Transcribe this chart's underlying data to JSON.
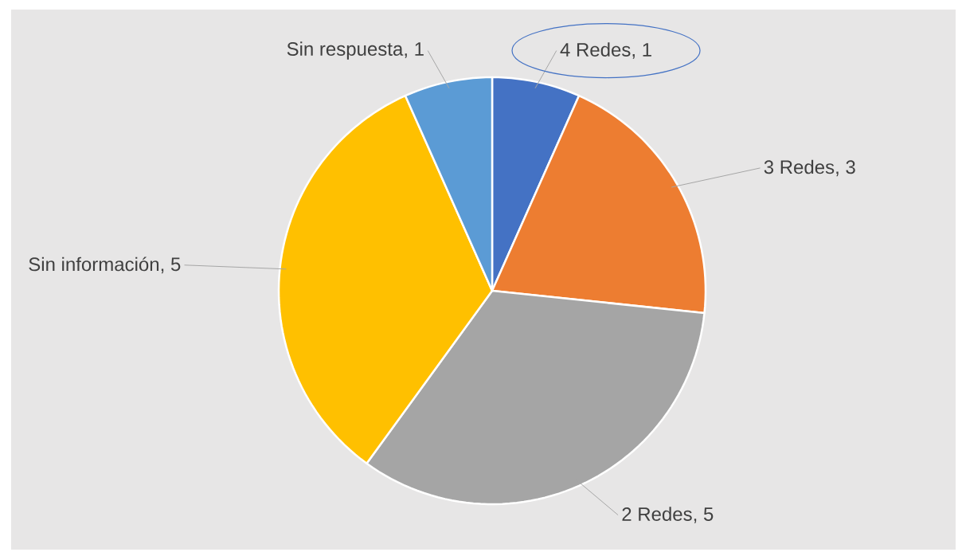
{
  "chart_data": {
    "type": "pie",
    "categories": [
      "4 Redes",
      "3 Redes",
      "2 Redes",
      "Sin información",
      "Sin respuesta"
    ],
    "values": [
      1,
      3,
      5,
      5,
      1
    ],
    "colors": [
      "#4472c4",
      "#ed7d31",
      "#a5a5a5",
      "#ffc000",
      "#5b9bd5"
    ],
    "value_labels": [
      ", 1",
      ", 3",
      ", 5",
      ", 5",
      ", 1"
    ]
  }
}
